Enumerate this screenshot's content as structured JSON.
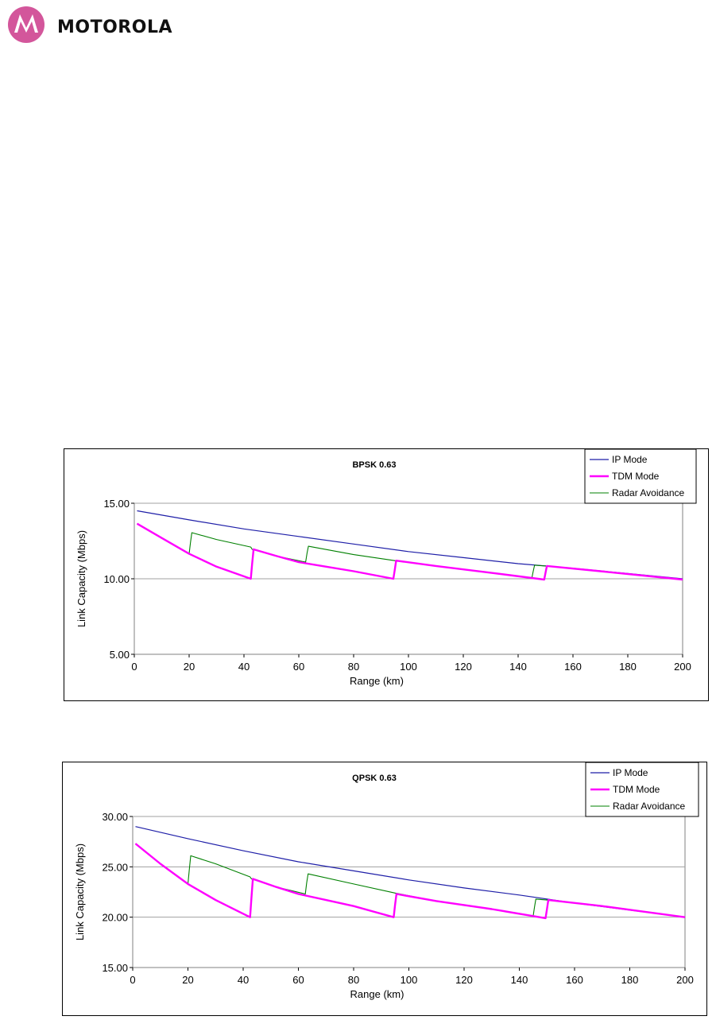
{
  "header": {
    "brand": "MOTOROLA",
    "logo_icon": "motorola-batwing-icon",
    "logo_color": "#d3569b"
  },
  "chart_data": [
    {
      "type": "line",
      "title": "BPSK 0.63",
      "xlabel": "Range (km)",
      "ylabel": "Link Capacity (Mbps)",
      "xlim": [
        0,
        200
      ],
      "ylim": [
        5,
        15
      ],
      "xticks": [
        "0",
        "20",
        "40",
        "60",
        "80",
        "100",
        "120",
        "140",
        "160",
        "180",
        "200"
      ],
      "yticks": [
        "5.00",
        "10.00",
        "15.00"
      ],
      "grid": "horizontal",
      "legend_position": "top-right",
      "series": [
        {
          "name": "IP Mode",
          "color": "#1f1fa8",
          "x": [
            1,
            20,
            40,
            60,
            80,
            100,
            120,
            140,
            160,
            180,
            200
          ],
          "y": [
            14.5,
            13.9,
            13.3,
            12.8,
            12.3,
            11.8,
            11.4,
            11.0,
            10.7,
            10.35,
            10.0
          ]
        },
        {
          "name": "TDM Mode",
          "color": "#ff00ff",
          "x": [
            1,
            10,
            20,
            30,
            42.5,
            43,
            43.5,
            52,
            60,
            70,
            80,
            94.5,
            95,
            95.5,
            110,
            130,
            149.5,
            150,
            150.5,
            170,
            200
          ],
          "y": [
            13.65,
            12.7,
            11.65,
            10.8,
            10.0,
            11.0,
            11.95,
            11.5,
            11.1,
            10.8,
            10.5,
            10.0,
            10.6,
            11.2,
            10.85,
            10.4,
            9.95,
            10.4,
            10.85,
            10.5,
            9.95
          ]
        },
        {
          "name": "Radar Avoidance",
          "color": "#008000",
          "x": [
            1,
            10,
            20,
            20.5,
            21,
            30,
            42.5,
            43,
            52,
            62.5,
            63,
            63.5,
            80,
            95,
            110,
            130,
            145,
            145.5,
            146,
            150,
            170,
            200
          ],
          "y": [
            13.65,
            12.7,
            11.65,
            12.4,
            13.05,
            12.6,
            12.1,
            11.95,
            11.5,
            11.1,
            11.7,
            12.15,
            11.6,
            11.2,
            10.85,
            10.4,
            10.05,
            10.5,
            10.9,
            10.85,
            10.5,
            9.95
          ]
        }
      ]
    },
    {
      "type": "line",
      "title": "QPSK 0.63",
      "xlabel": "Range (km)",
      "ylabel": "Link Capacity (Mbps)",
      "xlim": [
        0,
        200
      ],
      "ylim": [
        15,
        30
      ],
      "xticks": [
        "0",
        "20",
        "40",
        "60",
        "80",
        "100",
        "120",
        "140",
        "160",
        "180",
        "200"
      ],
      "yticks": [
        "15.00",
        "20.00",
        "25.00",
        "30.00"
      ],
      "grid": "horizontal",
      "legend_position": "top-right",
      "series": [
        {
          "name": "IP Mode",
          "color": "#1f1fa8",
          "x": [
            1,
            20,
            40,
            60,
            80,
            100,
            120,
            140,
            160,
            180,
            200
          ],
          "y": [
            29.0,
            27.8,
            26.6,
            25.5,
            24.6,
            23.7,
            22.9,
            22.2,
            21.4,
            20.7,
            20.0
          ]
        },
        {
          "name": "TDM Mode",
          "color": "#ff00ff",
          "x": [
            1,
            10,
            20,
            30,
            42.5,
            43,
            43.5,
            52,
            60,
            70,
            80,
            94.5,
            95,
            95.5,
            110,
            130,
            149.5,
            150,
            150.5,
            170,
            200
          ],
          "y": [
            27.3,
            25.3,
            23.3,
            21.7,
            20.0,
            21.9,
            23.8,
            23.0,
            22.3,
            21.7,
            21.1,
            20.0,
            21.2,
            22.3,
            21.6,
            20.8,
            19.9,
            20.8,
            21.7,
            21.1,
            20.0
          ]
        },
        {
          "name": "Radar Avoidance",
          "color": "#008000",
          "x": [
            1,
            10,
            20,
            20.5,
            21,
            30,
            42.5,
            43,
            52,
            62.5,
            63,
            63.5,
            80,
            95,
            110,
            130,
            145,
            145.5,
            146,
            150,
            170,
            200
          ],
          "y": [
            27.3,
            25.3,
            23.3,
            24.7,
            26.1,
            25.3,
            24.0,
            23.8,
            23.0,
            22.3,
            23.4,
            24.3,
            23.3,
            22.4,
            21.6,
            20.8,
            20.1,
            21.0,
            21.8,
            21.7,
            21.1,
            20.0
          ]
        }
      ]
    }
  ]
}
